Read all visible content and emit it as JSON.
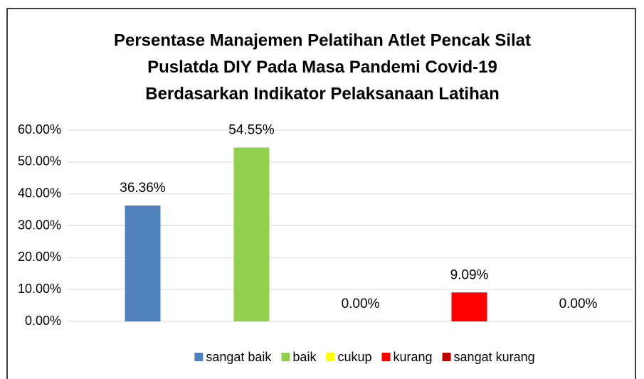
{
  "chart_data": {
    "type": "bar",
    "title": [
      "Persentase Manajemen Pelatihan Atlet Pencak Silat",
      "Puslatda DIY Pada Masa Pandemi Covid-19",
      "Berdasarkan Indikator Pelaksanaan Latihan"
    ],
    "series": [
      {
        "name": "sangat baik",
        "color": "#4f81bd",
        "values": [
          36.36
        ],
        "value_labels": [
          "36.36%"
        ]
      },
      {
        "name": "baik",
        "color": "#92d050",
        "values": [
          54.55
        ],
        "value_labels": [
          "54.55%"
        ]
      },
      {
        "name": "cukup",
        "color": "#ffff00",
        "values": [
          0
        ],
        "value_labels": [
          "0.00%"
        ]
      },
      {
        "name": "kurang",
        "color": "#ff0000",
        "values": [
          9.09
        ],
        "value_labels": [
          "9.09%"
        ]
      },
      {
        "name": "sangat kurang",
        "color": "#c00000",
        "values": [
          0
        ],
        "value_labels": [
          "0.00%"
        ]
      }
    ],
    "ylim": [
      0,
      60
    ],
    "yticks": [
      {
        "value": 0,
        "label": "0.00%"
      },
      {
        "value": 10,
        "label": "10.00%"
      },
      {
        "value": 20,
        "label": "20.00%"
      },
      {
        "value": 30,
        "label": "30.00%"
      },
      {
        "value": 40,
        "label": "40.00%"
      },
      {
        "value": 50,
        "label": "50.00%"
      },
      {
        "value": 60,
        "label": "60.00%"
      }
    ],
    "grid": true,
    "legend": "bottom"
  }
}
